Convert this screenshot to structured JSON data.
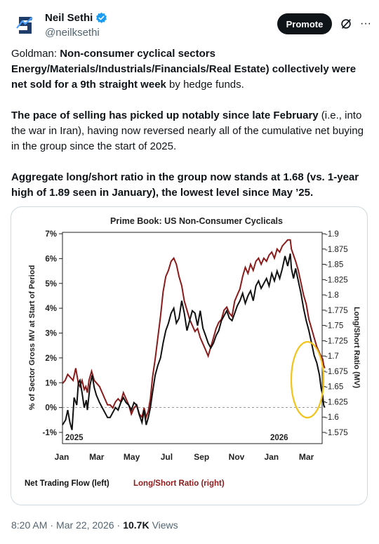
{
  "author": {
    "name": "Neil Sethi",
    "handle": "@neilksethi",
    "verified": true,
    "avatar_icon": "ns-logo-icon"
  },
  "actions": {
    "promote_label": "Promote",
    "grok_icon": "grok-slash-icon",
    "more_icon": "more-horizontal-icon",
    "more_glyph": "···"
  },
  "tweet": {
    "p1_prefix": "Goldman: ",
    "p1_bold": "Non-consumer cyclical sectors Energy/Materials/Industrials/Financials/Real Estate) collectively were net sold for a 9th straight week",
    "p1_suffix": " by hedge funds.",
    "p2_bold": "The pace of selling has picked up notably since late February",
    "p2_suffix": " (i.e., into the war in Iran), having now reversed nearly all of the cumulative net buying in the group since the start of 2025.",
    "p3_bold": "Aggregate long/short ratio in the group now stands at 1.68 (vs. 1-year high of 1.89 seen in January), the lowest level since May ’25."
  },
  "footer": {
    "time": "8:20 AM",
    "sep1": "·",
    "date": "Mar 22, 2026",
    "sep2": "·",
    "views": "10.7K",
    "views_label": "Views"
  },
  "chart_data": {
    "type": "line",
    "title": "Prime Book: US Non-Consumer Cyclicals",
    "ylabel_left": "% of Sector Gross MV at Start of Period",
    "ylabel_right": "Long/Short Ratio (MV)",
    "xticks": [
      "Jan",
      "Mar",
      "May",
      "Jul",
      "Sep",
      "Nov",
      "Jan",
      "Mar"
    ],
    "year_labels": [
      "2025",
      "2026"
    ],
    "left_ticks": [
      "7%",
      "6%",
      "5%",
      "4%",
      "3%",
      "2%",
      "1%",
      "0%",
      "-1%"
    ],
    "right_ticks": [
      "1.9",
      "1.875",
      "1.85",
      "1.825",
      "1.8",
      "1.775",
      "1.75",
      "1.725",
      "1.7",
      "1.675",
      "1.65",
      "1.625",
      "1.6",
      "1.575"
    ],
    "ylim_left": [
      -1,
      7
    ],
    "ylim_right": [
      1.575,
      1.9
    ],
    "colors": {
      "flow": "#111111",
      "ratio": "#8b1a1a",
      "highlight": "#f2c318"
    },
    "series": [
      {
        "name": "Net Trading Flow (left)",
        "axis": "left",
        "points": [
          [
            0,
            -0.7
          ],
          [
            0.06,
            -0.5
          ],
          [
            0.1,
            -0.1
          ],
          [
            0.14,
            -0.6
          ],
          [
            0.18,
            -0.9
          ],
          [
            0.22,
            0.4
          ],
          [
            0.27,
            0.1
          ],
          [
            0.3,
            1
          ],
          [
            0.33,
            1.1
          ],
          [
            0.37,
            0.6
          ],
          [
            0.41,
            0
          ],
          [
            0.45,
            0.3
          ],
          [
            0.47,
            -0.1
          ],
          [
            0.52,
            0.9
          ],
          [
            0.56,
            1.3
          ],
          [
            0.6,
            0.8
          ],
          [
            0.64,
            0.5
          ],
          [
            0.7,
            0.2
          ],
          [
            0.75,
            0
          ],
          [
            0.8,
            -0.2
          ],
          [
            0.85,
            -0.4
          ],
          [
            0.9,
            -0.4
          ],
          [
            0.95,
            -0.2
          ],
          [
            1,
            0
          ],
          [
            1.05,
            -0.1
          ],
          [
            1.1,
            0.2
          ],
          [
            1.15,
            0.4
          ],
          [
            1.2,
            0.2
          ],
          [
            1.25,
            0.1
          ],
          [
            1.3,
            -0.1
          ],
          [
            1.35,
            0.2
          ],
          [
            1.4,
            0.1
          ],
          [
            1.45,
            -0.3
          ],
          [
            1.5,
            -0.6
          ],
          [
            1.54,
            -0.1
          ],
          [
            1.58,
            -0.7
          ],
          [
            1.62,
            -0.4
          ],
          [
            1.66,
            0
          ],
          [
            1.7,
            0.6
          ],
          [
            1.75,
            1.3
          ],
          [
            1.8,
            1.7
          ],
          [
            1.85,
            2
          ],
          [
            1.9,
            2.6
          ],
          [
            1.95,
            3.1
          ],
          [
            2,
            3.4
          ],
          [
            2.05,
            3.8
          ],
          [
            2.1,
            4
          ],
          [
            2.15,
            3.4
          ],
          [
            2.2,
            3.6
          ],
          [
            2.25,
            4.3
          ],
          [
            2.3,
            3.8
          ],
          [
            2.35,
            3.1
          ],
          [
            2.4,
            3.5
          ],
          [
            2.45,
            3.9
          ],
          [
            2.5,
            3.8
          ],
          [
            2.55,
            3.3
          ],
          [
            2.6,
            3.9
          ],
          [
            2.65,
            3.2
          ],
          [
            2.7,
            2.9
          ],
          [
            2.75,
            2.6
          ],
          [
            2.8,
            2.4
          ],
          [
            2.85,
            2.6
          ],
          [
            2.9,
            2.9
          ],
          [
            2.95,
            3.1
          ],
          [
            3,
            3.5
          ],
          [
            3.05,
            3.7
          ],
          [
            3.1,
            3.9
          ],
          [
            3.15,
            3.6
          ],
          [
            3.2,
            3.5
          ],
          [
            3.25,
            3.8
          ],
          [
            3.3,
            4.1
          ],
          [
            3.35,
            4.3
          ],
          [
            3.4,
            4.6
          ],
          [
            3.45,
            4.2
          ],
          [
            3.5,
            4.5
          ],
          [
            3.55,
            4.7
          ],
          [
            3.6,
            4.3
          ],
          [
            3.65,
            4.9
          ],
          [
            3.7,
            5.1
          ],
          [
            3.75,
            4.8
          ],
          [
            3.8,
            5
          ],
          [
            3.85,
            5.2
          ],
          [
            3.9,
            4.9
          ],
          [
            3.95,
            5.4
          ],
          [
            4,
            5.1
          ],
          [
            4.05,
            5.5
          ],
          [
            4.1,
            5.2
          ],
          [
            4.15,
            5.6
          ],
          [
            4.2,
            6.1
          ],
          [
            4.25,
            5.7
          ],
          [
            4.3,
            6.2
          ],
          [
            4.32,
            5.6
          ],
          [
            4.36,
            5.2
          ],
          [
            4.4,
            5.6
          ],
          [
            4.45,
            5.1
          ],
          [
            4.5,
            4.6
          ],
          [
            4.55,
            4
          ],
          [
            4.6,
            3.5
          ],
          [
            4.65,
            3.1
          ],
          [
            4.7,
            2.6
          ],
          [
            4.75,
            2.1
          ],
          [
            4.8,
            1.8
          ],
          [
            4.85,
            1.3
          ],
          [
            4.88,
            0.8
          ],
          [
            4.91,
            0.5
          ],
          [
            4.93,
            0.1
          ],
          [
            4.95,
            0
          ]
        ]
      },
      {
        "name": "Long/Short Ratio (right)",
        "axis": "right",
        "points": [
          [
            0,
            1.655
          ],
          [
            0.05,
            1.66
          ],
          [
            0.1,
            1.67
          ],
          [
            0.15,
            1.665
          ],
          [
            0.2,
            1.66
          ],
          [
            0.25,
            1.68
          ],
          [
            0.3,
            1.655
          ],
          [
            0.33,
            1.65
          ],
          [
            0.37,
            1.66
          ],
          [
            0.41,
            1.645
          ],
          [
            0.44,
            1.65
          ],
          [
            0.47,
            1.64
          ],
          [
            0.5,
            1.66
          ],
          [
            0.55,
            1.675
          ],
          [
            0.6,
            1.66
          ],
          [
            0.65,
            1.655
          ],
          [
            0.7,
            1.65
          ],
          [
            0.75,
            1.64
          ],
          [
            0.8,
            1.63
          ],
          [
            0.85,
            1.62
          ],
          [
            0.9,
            1.62
          ],
          [
            0.95,
            1.615
          ],
          [
            1,
            1.625
          ],
          [
            1.05,
            1.63
          ],
          [
            1.1,
            1.625
          ],
          [
            1.15,
            1.64
          ],
          [
            1.2,
            1.63
          ],
          [
            1.25,
            1.62
          ],
          [
            1.3,
            1.605
          ],
          [
            1.35,
            1.615
          ],
          [
            1.4,
            1.62
          ],
          [
            1.45,
            1.605
          ],
          [
            1.5,
            1.6
          ],
          [
            1.54,
            1.615
          ],
          [
            1.58,
            1.6
          ],
          [
            1.62,
            1.61
          ],
          [
            1.66,
            1.63
          ],
          [
            1.7,
            1.665
          ],
          [
            1.75,
            1.695
          ],
          [
            1.8,
            1.73
          ],
          [
            1.85,
            1.765
          ],
          [
            1.9,
            1.805
          ],
          [
            1.95,
            1.83
          ],
          [
            2,
            1.84
          ],
          [
            2.05,
            1.855
          ],
          [
            2.1,
            1.86
          ],
          [
            2.15,
            1.85
          ],
          [
            2.2,
            1.83
          ],
          [
            2.25,
            1.815
          ],
          [
            2.3,
            1.79
          ],
          [
            2.35,
            1.775
          ],
          [
            2.4,
            1.76
          ],
          [
            2.45,
            1.75
          ],
          [
            2.5,
            1.74
          ],
          [
            2.55,
            1.745
          ],
          [
            2.6,
            1.73
          ],
          [
            2.65,
            1.72
          ],
          [
            2.7,
            1.71
          ],
          [
            2.75,
            1.7
          ],
          [
            2.8,
            1.715
          ],
          [
            2.85,
            1.73
          ],
          [
            2.9,
            1.745
          ],
          [
            2.95,
            1.755
          ],
          [
            3,
            1.76
          ],
          [
            3.05,
            1.775
          ],
          [
            3.1,
            1.78
          ],
          [
            3.15,
            1.77
          ],
          [
            3.2,
            1.765
          ],
          [
            3.25,
            1.79
          ],
          [
            3.3,
            1.8
          ],
          [
            3.35,
            1.81
          ],
          [
            3.4,
            1.83
          ],
          [
            3.45,
            1.845
          ],
          [
            3.5,
            1.835
          ],
          [
            3.55,
            1.85
          ],
          [
            3.6,
            1.84
          ],
          [
            3.65,
            1.855
          ],
          [
            3.7,
            1.86
          ],
          [
            3.75,
            1.85
          ],
          [
            3.8,
            1.86
          ],
          [
            3.85,
            1.855
          ],
          [
            3.9,
            1.865
          ],
          [
            3.95,
            1.87
          ],
          [
            4,
            1.86
          ],
          [
            4.05,
            1.875
          ],
          [
            4.1,
            1.87
          ],
          [
            4.15,
            1.88
          ],
          [
            4.2,
            1.885
          ],
          [
            4.25,
            1.89
          ],
          [
            4.3,
            1.89
          ],
          [
            4.32,
            1.875
          ],
          [
            4.36,
            1.865
          ],
          [
            4.4,
            1.855
          ],
          [
            4.45,
            1.84
          ],
          [
            4.5,
            1.82
          ],
          [
            4.55,
            1.8
          ],
          [
            4.6,
            1.785
          ],
          [
            4.65,
            1.76
          ],
          [
            4.7,
            1.745
          ],
          [
            4.75,
            1.73
          ],
          [
            4.8,
            1.715
          ],
          [
            4.85,
            1.705
          ],
          [
            4.88,
            1.7
          ],
          [
            4.91,
            1.695
          ],
          [
            4.93,
            1.685
          ],
          [
            4.95,
            1.68
          ]
        ]
      }
    ],
    "highlight": "ellipse around latest readings (Mar 2026)",
    "legend_placement": "bottom-left",
    "grid": false
  }
}
